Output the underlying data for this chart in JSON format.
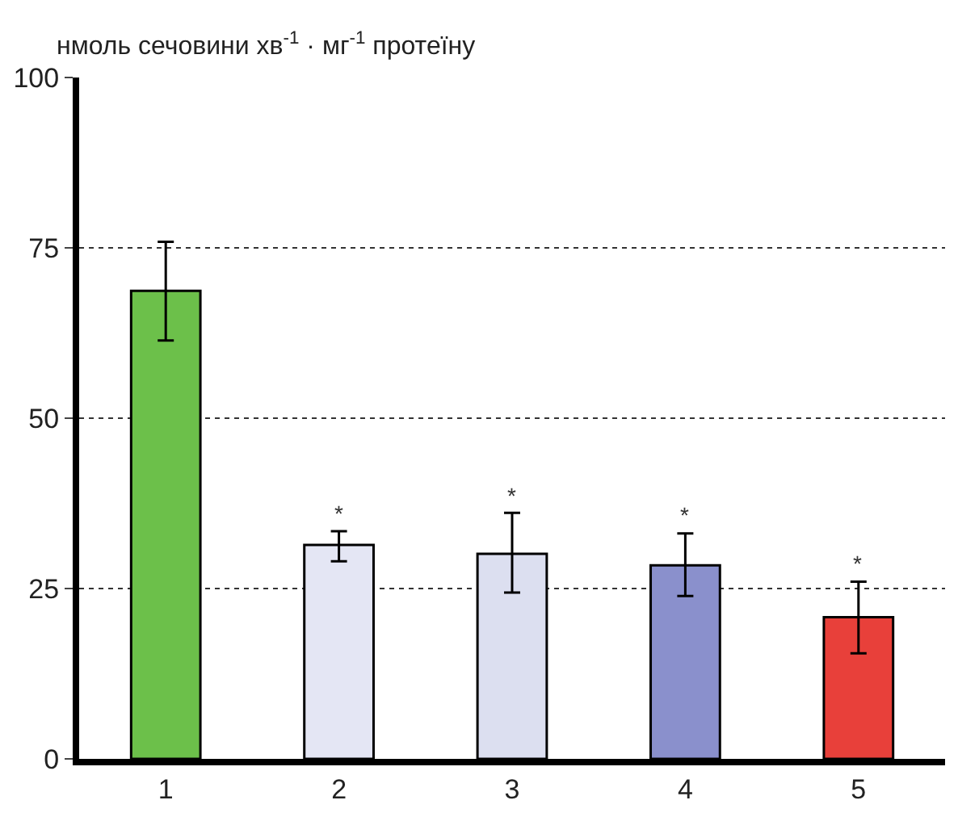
{
  "chart_data": {
    "type": "bar",
    "ylabel": "нмоль сечовини хв$^{-1}$ · мг$^{-1}$ протеїну",
    "categories": [
      "1",
      "2",
      "3",
      "4",
      "5"
    ],
    "values": [
      68.7,
      31.4,
      30.1,
      28.4,
      20.8
    ],
    "errors": [
      [
        61.4,
        75.9
      ],
      [
        29.0,
        33.4
      ],
      [
        24.4,
        36.1
      ],
      [
        23.9,
        33.1
      ],
      [
        15.5,
        26.0
      ]
    ],
    "colors": [
      "#6cc04a",
      "#e4e6f4",
      "#dcdff0",
      "#8a90cc",
      "#e8403a"
    ],
    "ylim": [
      0,
      100
    ],
    "yticks": [
      0,
      25,
      50,
      75,
      100
    ],
    "grid": "y",
    "legend": false,
    "annotations": [
      "*",
      "*",
      "*",
      "*"
    ]
  }
}
